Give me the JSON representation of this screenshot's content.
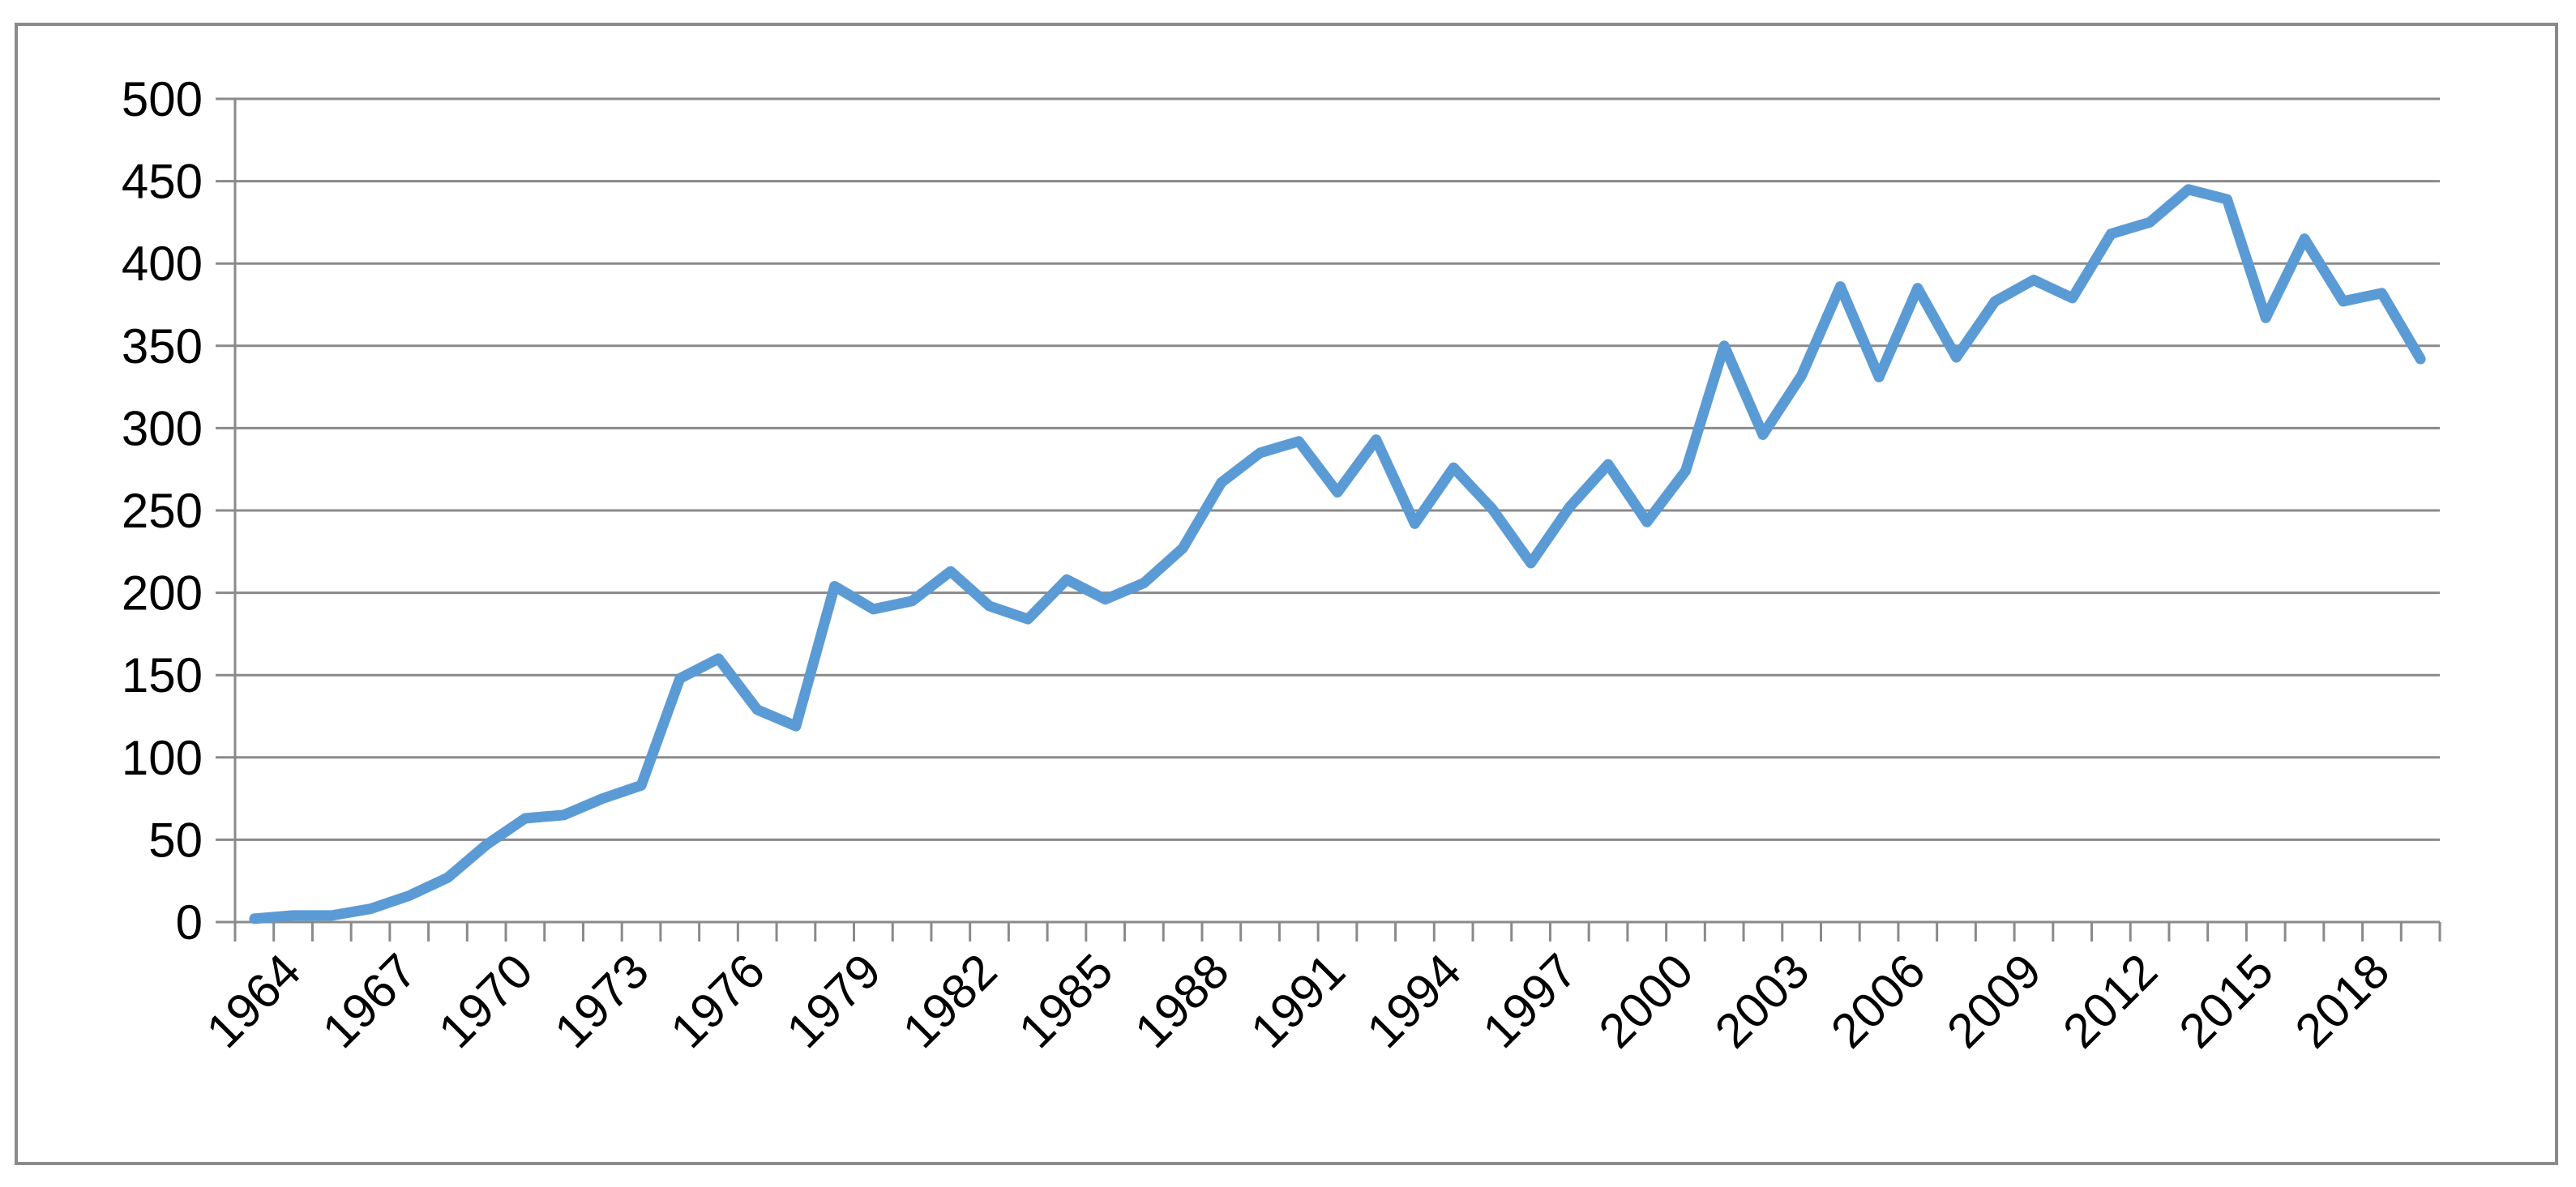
{
  "chart_data": {
    "type": "line",
    "title": "",
    "xlabel": "",
    "ylabel": "",
    "ylim": [
      0,
      500
    ],
    "y_ticks": [
      "0",
      "50",
      "100",
      "150",
      "200",
      "250",
      "300",
      "350",
      "400",
      "450",
      "500"
    ],
    "x_tick_labels": [
      "1964",
      "1967",
      "1970",
      "1973",
      "1976",
      "1979",
      "1982",
      "1985",
      "1988",
      "1991",
      "1994",
      "1997",
      "2000",
      "2003",
      "2006",
      "2009",
      "2012",
      "2015",
      "2018"
    ],
    "grid": true,
    "legend": "none",
    "series": [
      {
        "color": "#5b9bd5",
        "x": [
          1964,
          1965,
          1966,
          1967,
          1968,
          1969,
          1970,
          1971,
          1972,
          1973,
          1974,
          1975,
          1976,
          1977,
          1978,
          1979,
          1980,
          1981,
          1982,
          1983,
          1984,
          1985,
          1986,
          1987,
          1988,
          1989,
          1990,
          1991,
          1992,
          1993,
          1994,
          1995,
          1996,
          1997,
          1998,
          1999,
          2000,
          2001,
          2002,
          2003,
          2004,
          2005,
          2006,
          2007,
          2008,
          2009,
          2010,
          2011,
          2012,
          2013,
          2014,
          2015,
          2016,
          2017,
          2018,
          2019,
          2020
        ],
        "values": [
          2,
          4,
          4,
          8,
          16,
          27,
          47,
          63,
          65,
          75,
          83,
          148,
          160,
          129,
          119,
          204,
          190,
          195,
          213,
          192,
          184,
          208,
          196,
          206,
          227,
          267,
          285,
          292,
          261,
          293,
          242,
          276,
          251,
          218,
          252,
          278,
          243,
          274,
          350,
          296,
          332,
          386,
          331,
          385,
          343,
          377,
          390,
          379,
          418,
          425,
          445,
          439,
          367,
          415,
          377,
          382,
          342
        ]
      }
    ],
    "colors": {
      "line": "#5b9bd5",
      "grid": "#8a8a8a",
      "axis": "#8a8a8a",
      "border": "#8a8a8a"
    }
  }
}
